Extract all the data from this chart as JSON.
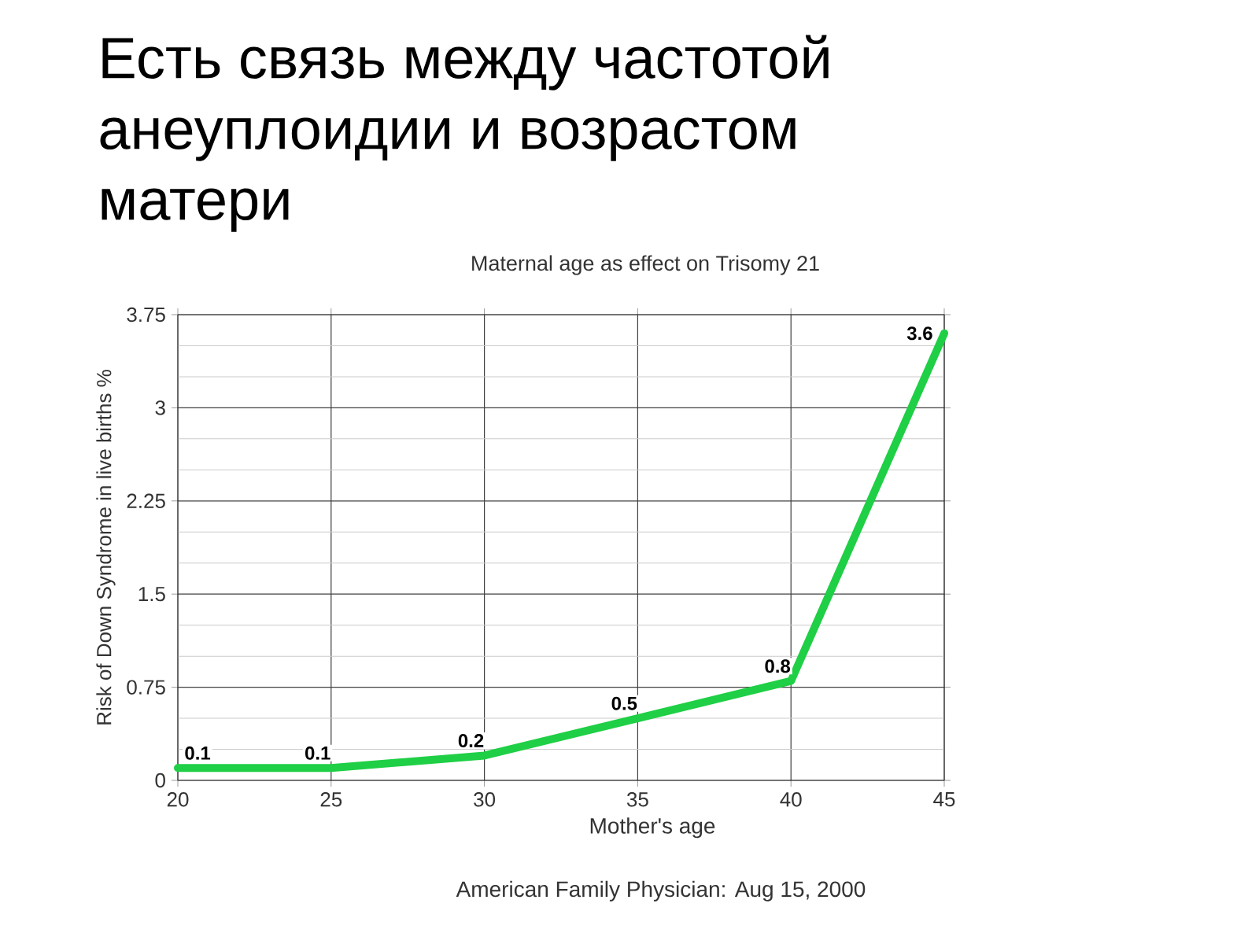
{
  "chart_data": {
    "type": "line",
    "title": "Есть связь между частотой анеуплоидии и возрастом матери",
    "subtitle": "Maternal age as effect on Trisomy 21",
    "xlabel": "Mother's age",
    "ylabel": "Risk of Down Syndrome in live births %",
    "annotations": [
      "American Family Physician: Aug 15, 2000"
    ],
    "x": [
      20,
      25,
      30,
      35,
      40,
      45
    ],
    "series": [
      {
        "color": "#1fcf45",
        "values": [
          0.1,
          0.1,
          0.2,
          0.5,
          0.8,
          3.6
        ]
      }
    ],
    "xlim": [
      20,
      45
    ],
    "xticks": [
      20,
      25,
      30,
      35,
      40,
      45
    ],
    "ylim": [
      0,
      3.75
    ],
    "yticks": [
      0,
      0.75,
      1.5,
      2.25,
      3,
      3.75
    ],
    "grid": true,
    "marker": "none",
    "line_style": "solid",
    "data_labels": true
  }
}
